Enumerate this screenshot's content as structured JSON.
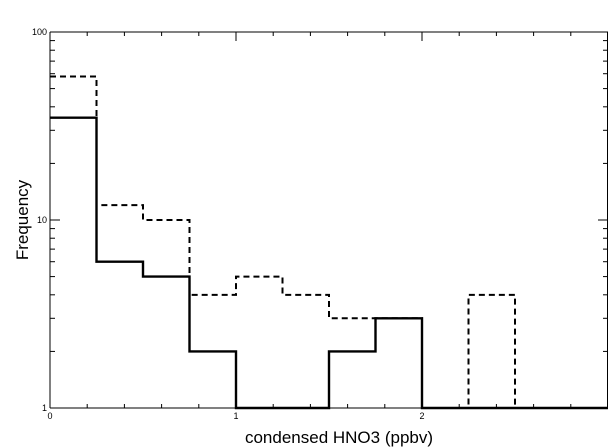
{
  "chart_data": {
    "type": "histogram",
    "title": "",
    "xlabel": "condensed HNO3  (ppbv)",
    "ylabel": "Frequency",
    "x_scale": "linear",
    "y_scale": "log",
    "xlim": [
      0,
      3
    ],
    "ylim": [
      1,
      100
    ],
    "x_ticks": [
      {
        "value": 0,
        "label": "0"
      },
      {
        "value": 1,
        "label": "1"
      },
      {
        "value": 2,
        "label": "2"
      }
    ],
    "y_ticks": [
      {
        "value": 1,
        "label": "1"
      },
      {
        "value": 10,
        "label": "10"
      },
      {
        "value": 100,
        "label": "100"
      }
    ],
    "bin_edges": [
      0,
      0.25,
      0.5,
      0.75,
      1.0,
      1.25,
      1.5,
      1.75,
      2.0,
      2.25,
      2.5,
      2.75,
      3.0
    ],
    "series": [
      {
        "style": "solid",
        "values": [
          35,
          6,
          5,
          2,
          1,
          1,
          2,
          3,
          1,
          1,
          1,
          1
        ]
      },
      {
        "style": "dashed",
        "values": [
          58,
          12,
          10,
          4,
          5,
          4,
          3,
          3,
          1,
          4,
          1,
          1
        ]
      }
    ],
    "grid": false,
    "legend": "none"
  }
}
